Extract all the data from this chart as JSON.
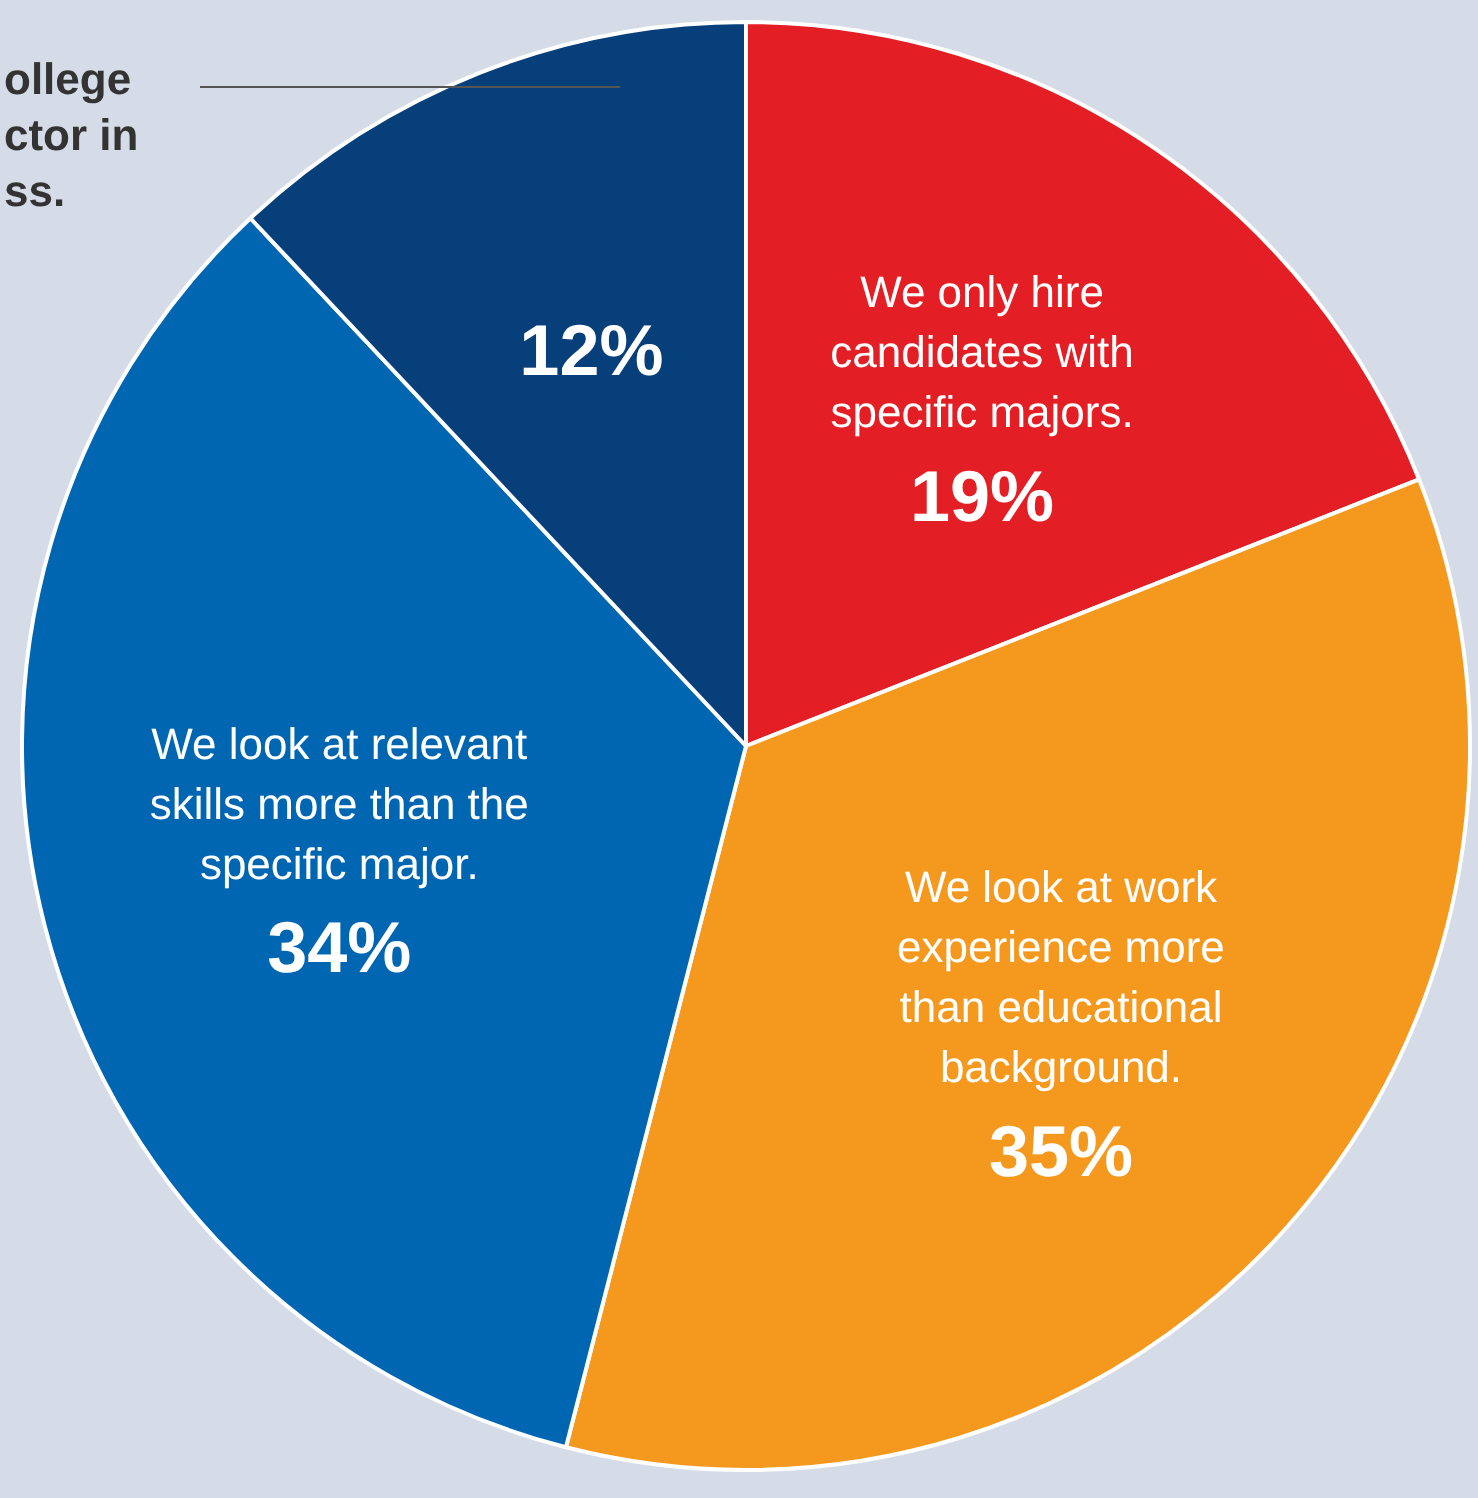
{
  "chart_data": {
    "type": "pie",
    "categories": [
      "We only hire\ncandidates with\nspecific majors.",
      "We look at work\nexperience more\nthan educational\nbackground.",
      "We look at relevant\nskills more than the\nspecific major.",
      null
    ],
    "values": [
      19,
      35,
      34,
      12
    ],
    "value_labels": [
      "19%",
      "35%",
      "34%",
      "12%"
    ],
    "colors": [
      "#e31e25",
      "#f4991e",
      "#0066b1",
      "#073f7a"
    ],
    "annotations": [
      "ollege\nctor in\nss."
    ],
    "legend": false
  }
}
